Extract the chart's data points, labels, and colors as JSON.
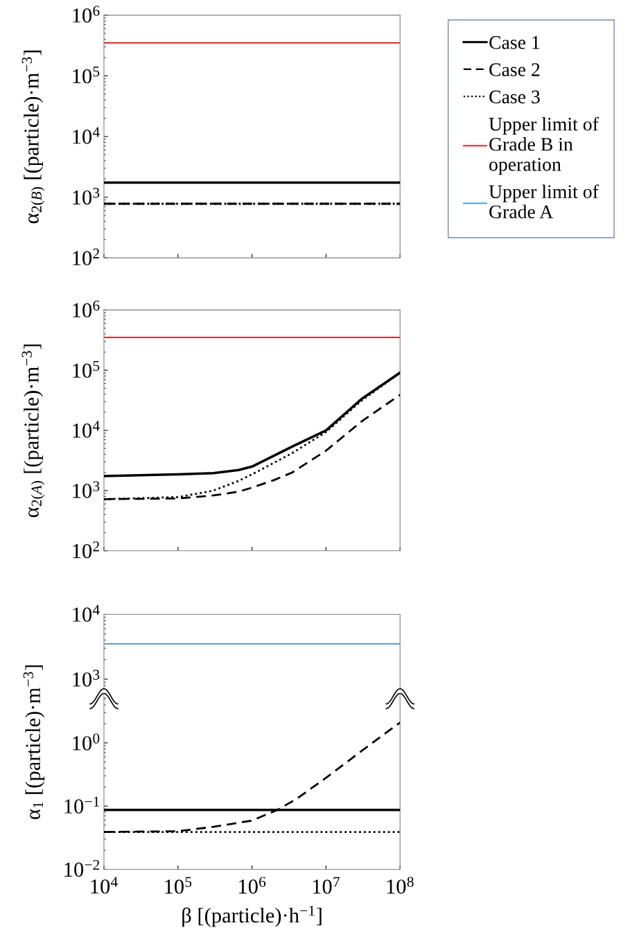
{
  "chart_data": [
    {
      "type": "line",
      "ylabel": "α$_{2(B)}$ [(particle)·m$^{−3}$]",
      "log": "xy",
      "legend": "right",
      "tick_labels": "y",
      "xlim": [
        10000,
        100000000
      ],
      "ylim": [
        100,
        1000000
      ],
      "xticks": [
        {
          "value": 10000,
          "label": null
        },
        {
          "value": 100000,
          "label": null
        },
        {
          "value": 1000000,
          "label": null
        },
        {
          "value": 10000000,
          "label": null
        },
        {
          "value": 100000000,
          "label": null
        }
      ],
      "yticks": [
        {
          "value": 100,
          "label": "10$^{2}$"
        },
        {
          "value": 1000,
          "label": "10$^{3}$"
        },
        {
          "value": 10000,
          "label": "10$^{4}$"
        },
        {
          "value": 100000,
          "label": "10$^{5}$"
        },
        {
          "value": 1000000,
          "label": "10$^{6}$"
        }
      ],
      "x": [
        10000,
        100000000
      ],
      "series": [
        {
          "name": "Case 1",
          "color": "#000000",
          "line_style": "solid",
          "values": [
            1740,
            1740
          ]
        },
        {
          "name": "Case 2",
          "color": "#000000",
          "line_style": "dashed",
          "values": [
            780,
            780
          ]
        },
        {
          "name": "Case 3",
          "color": "#000000",
          "line_style": "dotted",
          "values": [
            780,
            780
          ]
        }
      ],
      "ref_lines": [
        {
          "axis": "y",
          "value": 350000,
          "label": "Upper limit of Grade B in operation",
          "color": "#ff0000"
        }
      ]
    },
    {
      "type": "line",
      "ylabel": "α$_{2(A)}$ [(particle)·m$^{−3}$]",
      "log": "xy",
      "tick_labels": "y",
      "xlim": [
        10000,
        100000000
      ],
      "ylim": [
        100,
        1000000
      ],
      "xticks": [
        {
          "value": 10000,
          "label": null
        },
        {
          "value": 100000,
          "label": null
        },
        {
          "value": 1000000,
          "label": null
        },
        {
          "value": 10000000,
          "label": null
        },
        {
          "value": 100000000,
          "label": null
        }
      ],
      "yticks": [
        {
          "value": 100,
          "label": "10$^{2}$"
        },
        {
          "value": 1000,
          "label": "10$^{3}$"
        },
        {
          "value": 10000,
          "label": "10$^{4}$"
        },
        {
          "value": 100000,
          "label": "10$^{5}$"
        },
        {
          "value": 1000000,
          "label": "10$^{6}$"
        }
      ],
      "series": [
        {
          "color": "#000000",
          "line_style": "solid",
          "x": [
            10000,
            100000,
            300000,
            660000,
            1000000,
            3500000,
            10000000,
            30000000,
            100000000
          ],
          "values": [
            1740,
            1860,
            1950,
            2200,
            2500,
            5400,
            10000,
            33000,
            91000
          ]
        },
        {
          "color": "#000000",
          "line_style": "dashed",
          "x": [
            10000,
            100000,
            300000,
            660000,
            1000000,
            2000000,
            3500000,
            10000000,
            30000000,
            100000000
          ],
          "values": [
            720,
            740,
            830,
            960,
            1120,
            1500,
            2000,
            4600,
            14000,
            39000
          ]
        },
        {
          "color": "#000000",
          "line_style": "dotted",
          "x": [
            10000,
            100000,
            300000,
            660000,
            1000000,
            3500000,
            10000000,
            30000000,
            100000000
          ],
          "values": [
            720,
            780,
            1000,
            1450,
            1860,
            4200,
            9400,
            31000,
            91000
          ]
        }
      ],
      "ref_lines": [
        {
          "axis": "y",
          "value": 350000,
          "color": "#ff0000"
        }
      ]
    },
    {
      "type": "line",
      "log": "xy",
      "tick_labels": "y",
      "xlim": [
        10000,
        100000000
      ],
      "ylim": [
        500,
        10000
      ],
      "xticks": [
        {
          "value": 10000,
          "label": null
        },
        {
          "value": 100000,
          "label": null
        },
        {
          "value": 1000000,
          "label": null
        },
        {
          "value": 10000000,
          "label": null
        },
        {
          "value": 100000000,
          "label": null
        }
      ],
      "yticks": [
        {
          "value": 1000,
          "label": "10$^{3}$"
        },
        {
          "value": 10000,
          "label": "10$^{4}$"
        }
      ],
      "ref_lines": [
        {
          "axis": "y",
          "value": 3500,
          "label": "Upper limit of Grade A",
          "color": "#3d8fd6"
        }
      ]
    },
    {
      "type": "line",
      "ylabel": "α$_{1}$ [(particle)·m$^{−3}$]",
      "xlabel": "β [(particle)·h$^{−1}$]",
      "log": "xy",
      "xlim": [
        10000,
        100000000
      ],
      "ylim": [
        0.01,
        5
      ],
      "xticks": [
        {
          "value": 10000,
          "label": "10$^{4}$"
        },
        {
          "value": 100000,
          "label": "10$^{5}$"
        },
        {
          "value": 1000000,
          "label": "10$^{6}$"
        },
        {
          "value": 10000000,
          "label": "10$^{7}$"
        },
        {
          "value": 100000000,
          "label": "10$^{8}$"
        }
      ],
      "yticks": [
        {
          "value": 0.01,
          "label": "10$^{−2}$"
        },
        {
          "value": 0.1,
          "label": "10$^{−1}$"
        },
        {
          "value": 1,
          "label": "10$^{0}$"
        }
      ],
      "series": [
        {
          "color": "#000000",
          "line_style": "solid",
          "x": [
            10000,
            100000000
          ],
          "values": [
            0.087,
            0.087
          ]
        },
        {
          "color": "#000000",
          "line_style": "dashed",
          "x": [
            10000,
            100000,
            300000,
            1000000,
            2200000,
            4000000,
            10000000,
            30000000,
            100000000
          ],
          "values": [
            0.039,
            0.04,
            0.047,
            0.059,
            0.087,
            0.13,
            0.28,
            0.74,
            2.1
          ]
        },
        {
          "color": "#000000",
          "line_style": "dotted",
          "x": [
            10000,
            100000000
          ],
          "values": [
            0.039,
            0.039
          ]
        }
      ]
    }
  ]
}
